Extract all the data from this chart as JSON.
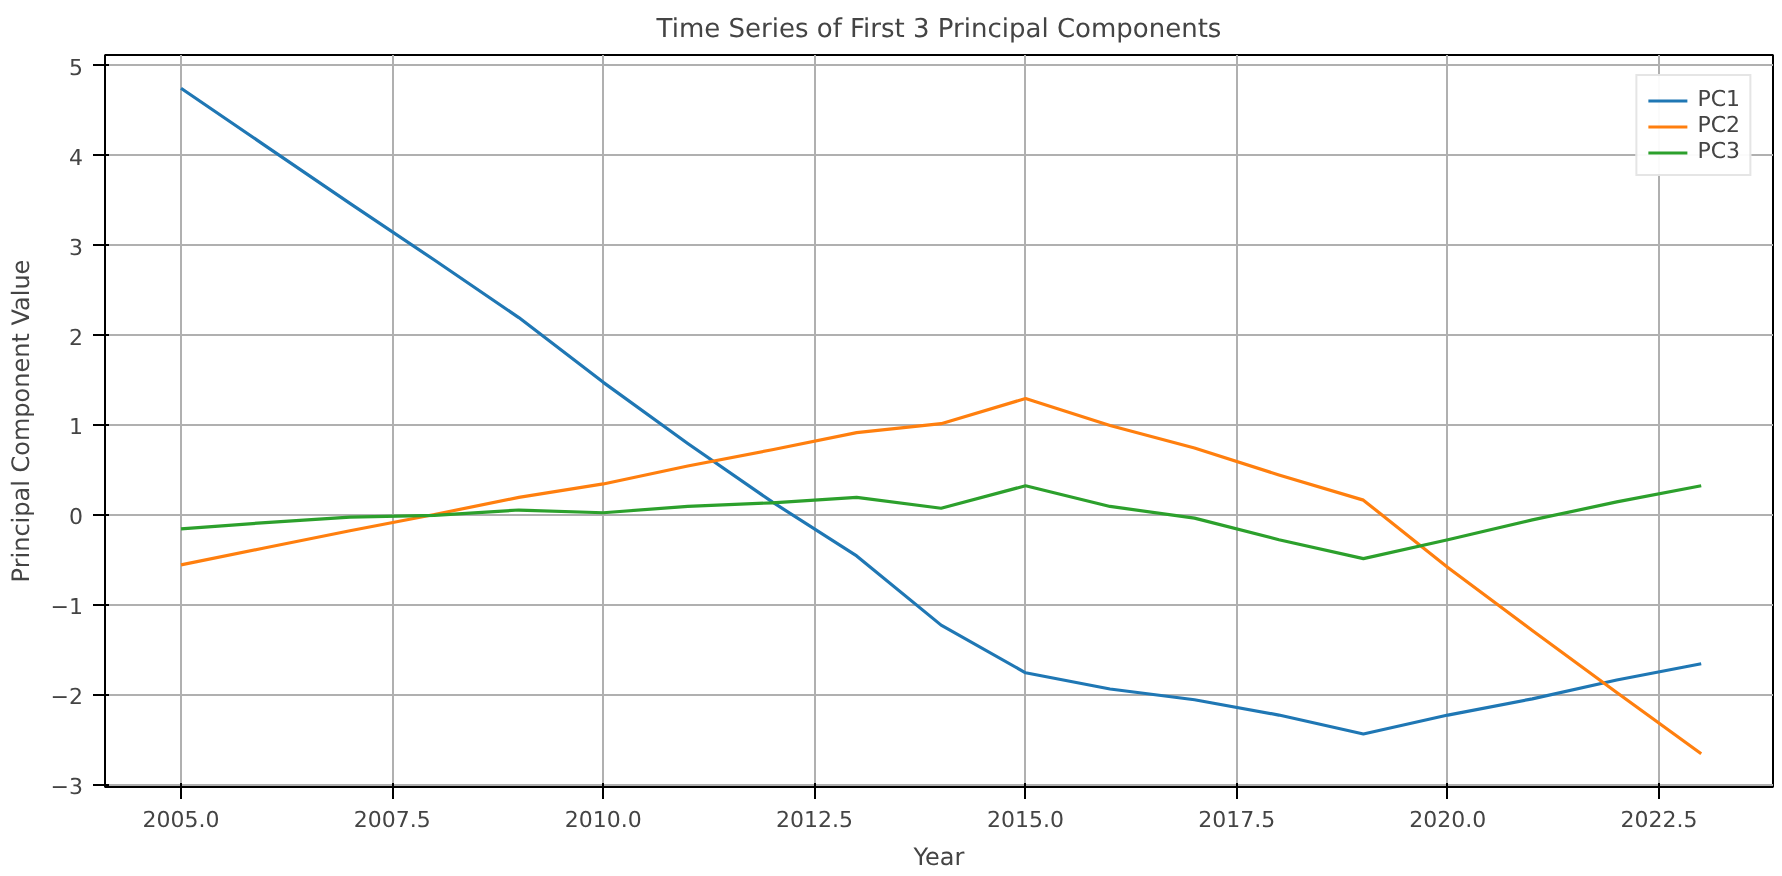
{
  "chart_data": {
    "type": "line",
    "title": "Time Series of First 3 Principal Components",
    "xlabel": "Year",
    "ylabel": "Principal Component Value",
    "x": [
      2005,
      2006,
      2007,
      2008,
      2009,
      2010,
      2011,
      2012,
      2013,
      2014,
      2015,
      2016,
      2017,
      2018,
      2019,
      2020,
      2021,
      2022,
      2023
    ],
    "series": [
      {
        "name": "PC1",
        "color": "#1f77b4",
        "values": [
          4.75,
          4.11,
          3.47,
          2.84,
          2.2,
          1.48,
          0.8,
          0.15,
          -0.45,
          -1.22,
          -1.75,
          -1.93,
          -2.05,
          -2.22,
          -2.43,
          -2.22,
          -2.04,
          -1.83,
          -1.65
        ]
      },
      {
        "name": "PC2",
        "color": "#ff7f0e",
        "values": [
          -0.55,
          -0.36,
          -0.17,
          0.01,
          0.2,
          0.35,
          0.55,
          0.73,
          0.92,
          1.02,
          1.3,
          1.0,
          0.75,
          0.45,
          0.17,
          -0.58,
          -1.28,
          -1.97,
          -2.65
        ]
      },
      {
        "name": "PC3",
        "color": "#2ca02c",
        "values": [
          -0.15,
          -0.08,
          -0.02,
          0.0,
          0.06,
          0.03,
          0.1,
          0.14,
          0.2,
          0.08,
          0.33,
          0.1,
          -0.03,
          -0.27,
          -0.48,
          -0.27,
          -0.05,
          0.15,
          0.33
        ]
      }
    ],
    "xlim": [
      2004.1,
      2023.85
    ],
    "ylim": [
      -3.02,
      5.12
    ],
    "xticks": [
      {
        "value": 2005,
        "label": "2005.0"
      },
      {
        "value": 2007.5,
        "label": "2007.5"
      },
      {
        "value": 2010,
        "label": "2010.0"
      },
      {
        "value": 2012.5,
        "label": "2012.5"
      },
      {
        "value": 2015,
        "label": "2015.0"
      },
      {
        "value": 2017.5,
        "label": "2017.5"
      },
      {
        "value": 2020,
        "label": "2020.0"
      },
      {
        "value": 2022.5,
        "label": "2022.5"
      }
    ],
    "yticks": [
      {
        "value": -3,
        "label": "−3"
      },
      {
        "value": -2,
        "label": "−2"
      },
      {
        "value": -1,
        "label": "−1"
      },
      0,
      1,
      2,
      3,
      4,
      5
    ],
    "grid": true,
    "legend": "top right",
    "marker": "none",
    "line_style": "solid"
  }
}
